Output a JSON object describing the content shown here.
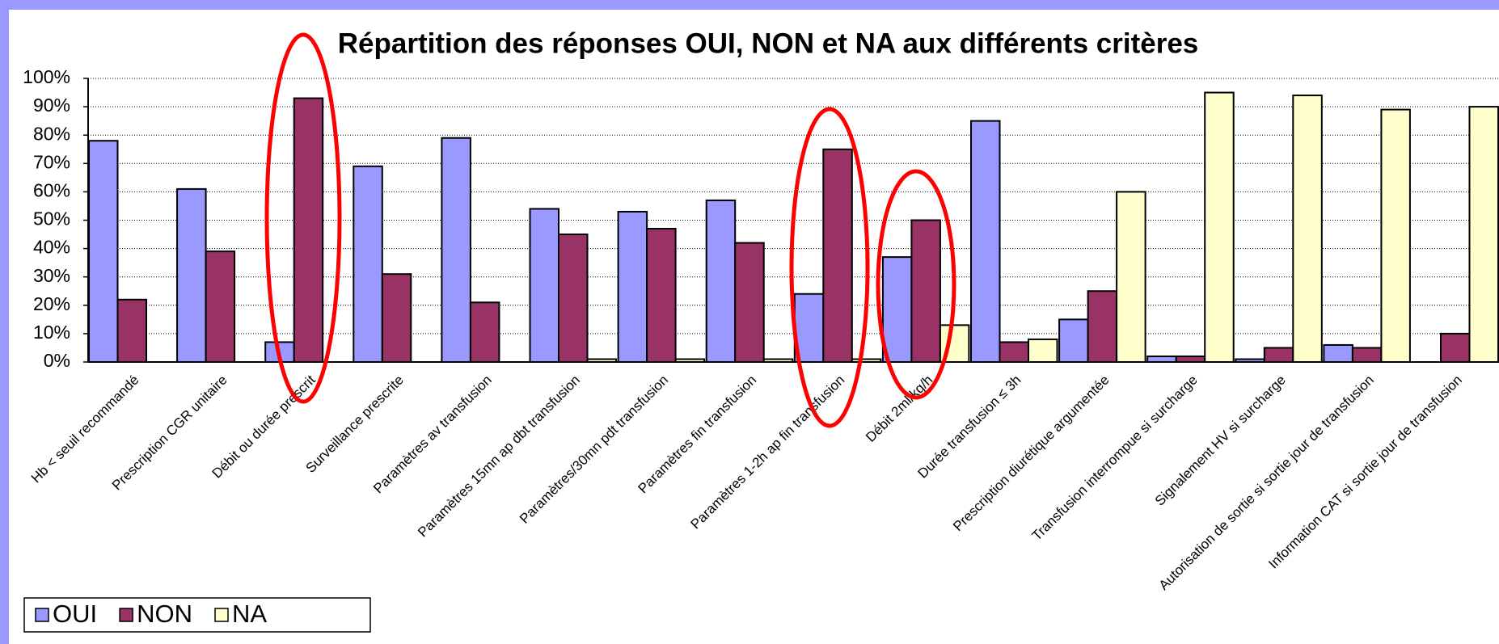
{
  "chart_data": {
    "type": "bar",
    "title": "Répartition des réponses OUI, NON et NA aux différents critères",
    "categories": [
      "Hb < seuil recommandé",
      "Prescription CGR unitaire",
      "Débit ou durée prescrit",
      "Surveillance prescrite",
      "Paramètres av transfusion",
      "Paramètres 15mn ap dbt transfusion",
      "Paramètres/30mn pdt transfusion",
      "Paramètres fin transfusion",
      "Paramètres 1-2h ap fin transfusion",
      "Débit 2ml/kg/h",
      "Durée transfusion ≤ 3h",
      "Prescription diurétique argumentée",
      "Transfusion interrompue si surcharge",
      "Signalement HV si surcharge",
      "Autorisation de sortie si sortie jour de transfusion",
      "Information CAT si sortie jour de transfusion"
    ],
    "series": [
      {
        "name": "OUI",
        "color": "#9999ff",
        "values": [
          78,
          61,
          7,
          69,
          79,
          54,
          53,
          57,
          24,
          37,
          85,
          15,
          2,
          1,
          6,
          0
        ]
      },
      {
        "name": "NON",
        "color": "#993366",
        "values": [
          22,
          39,
          93,
          31,
          21,
          45,
          47,
          42,
          75,
          50,
          7,
          25,
          2,
          5,
          5,
          10
        ]
      },
      {
        "name": "NA",
        "color": "#ffffcc",
        "values": [
          0,
          0,
          0,
          0,
          0,
          1,
          1,
          1,
          1,
          13,
          8,
          60,
          95,
          94,
          89,
          90
        ]
      }
    ],
    "ylim": [
      0,
      100
    ],
    "yticks": [
      {
        "value": 0,
        "label": "0%"
      },
      {
        "value": 10,
        "label": "10%"
      },
      {
        "value": 20,
        "label": "20%"
      },
      {
        "value": 30,
        "label": "30%"
      },
      {
        "value": 40,
        "label": "40%"
      },
      {
        "value": 50,
        "label": "50%"
      },
      {
        "value": 60,
        "label": "60%"
      },
      {
        "value": 70,
        "label": "70%"
      },
      {
        "value": 80,
        "label": "80%"
      },
      {
        "value": 90,
        "label": "90%"
      },
      {
        "value": 100,
        "label": "100%"
      }
    ],
    "grid": true,
    "legend": "bottom-left"
  }
}
